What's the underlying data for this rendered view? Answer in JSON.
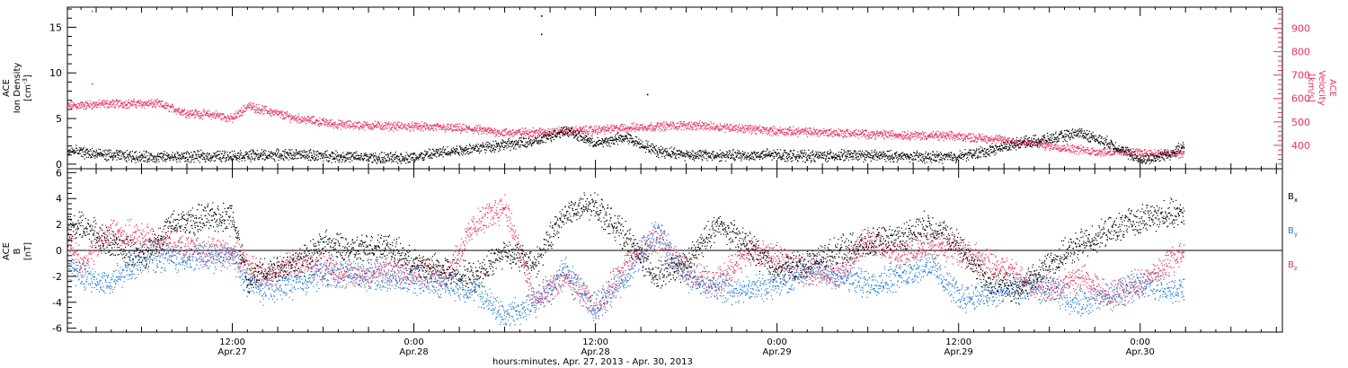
{
  "colors": {
    "black": "#000000",
    "pink": "#e8325c",
    "blue": "#1f7ad6"
  },
  "x_axis": {
    "ticks": [
      {
        "time": "12:00",
        "date": "Apr.27",
        "hours": 12
      },
      {
        "time": "0:00",
        "date": "Apr.28",
        "hours": 24
      },
      {
        "time": "12:00",
        "date": "Apr.28",
        "hours": 36
      },
      {
        "time": "0:00",
        "date": "Apr.29",
        "hours": 48
      },
      {
        "time": "12:00",
        "date": "Apr.29",
        "hours": 60
      },
      {
        "time": "0:00",
        "date": "Apr.30",
        "hours": 72
      }
    ],
    "label": "hours:minutes, Apr. 27, 2013 - Apr. 30, 2013",
    "range_hours": [
      1.1,
      81.4
    ]
  },
  "chart_data": [
    {
      "type": "scatter",
      "panel": "top",
      "ylabel": [
        "ACE",
        "Ion Density",
        "[cm^-3]"
      ],
      "ylim": [
        -0.5,
        17.2
      ],
      "yticks": [
        0,
        5,
        10,
        15
      ],
      "y2label": [
        "ACE",
        "Velocity",
        "[km/s]"
      ],
      "y2lim": [
        300,
        990
      ],
      "y2ticks": [
        400,
        500,
        600,
        700,
        800,
        900
      ],
      "series": [
        {
          "key": "density",
          "axis": "left",
          "color": "#000000",
          "x": [
            1.1,
            4,
            7,
            10,
            13,
            16,
            19,
            22,
            24,
            26,
            28,
            30,
            32,
            34,
            36,
            38,
            40,
            42,
            44,
            46,
            48,
            50,
            52,
            54,
            56,
            58,
            60,
            62,
            64,
            66,
            68,
            70,
            72,
            73,
            74,
            74.9
          ],
          "y": [
            1.5,
            1.0,
            0.8,
            0.9,
            1.0,
            1.1,
            0.9,
            0.7,
            0.8,
            1.4,
            1.8,
            2.2,
            2.5,
            3.8,
            2.3,
            3.0,
            1.5,
            1.1,
            1.0,
            1.0,
            1.1,
            0.9,
            1.0,
            1.0,
            0.9,
            0.8,
            0.9,
            1.5,
            2.4,
            2.8,
            3.5,
            2.3,
            0.5,
            0.8,
            1.2,
            2.0
          ]
        },
        {
          "key": "velocity",
          "axis": "right",
          "color": "#e8325c",
          "x": [
            1.1,
            4,
            7,
            9,
            11,
            12,
            13,
            16,
            19,
            22,
            25,
            28,
            30,
            33,
            36,
            39,
            42,
            45,
            48,
            51,
            54,
            57,
            60,
            63,
            66,
            69,
            72,
            74.9
          ],
          "y": [
            570,
            580,
            580,
            540,
            530,
            515,
            570,
            520,
            490,
            485,
            480,
            470,
            455,
            460,
            468,
            480,
            488,
            478,
            462,
            458,
            450,
            445,
            440,
            425,
            400,
            375,
            370,
            365
          ]
        }
      ],
      "outliers": [
        {
          "axis": "left",
          "x": 32.4,
          "y": 16.3
        },
        {
          "axis": "left",
          "x": 32.4,
          "y": 14.3
        },
        {
          "axis": "left",
          "x": 39.4,
          "y": 7.7
        },
        {
          "axis": "right",
          "x": 2.7,
          "y": 975
        },
        {
          "axis": "right",
          "x": 2.7,
          "y": 665
        }
      ]
    },
    {
      "type": "scatter",
      "panel": "bottom",
      "ylabel": [
        "ACE",
        "B",
        "[nT]"
      ],
      "ylim": [
        -6.3,
        6.3
      ],
      "yticks": [
        -6,
        -4,
        -2,
        0,
        2,
        4,
        6
      ],
      "zero_line": true,
      "legend": [
        {
          "name": "B",
          "sub": "x",
          "color": "#000000"
        },
        {
          "name": "B",
          "sub": "y",
          "color": "#1f7ad6"
        },
        {
          "name": "B",
          "sub": "z",
          "color": "#e8325c"
        }
      ],
      "series": [
        {
          "key": "Bx",
          "color": "#000000",
          "x": [
            1.1,
            2,
            4,
            6,
            8,
            10,
            12,
            13,
            14,
            16,
            18,
            20,
            22,
            24,
            26,
            28,
            30,
            32,
            34,
            36,
            38,
            40,
            42,
            44,
            46,
            48,
            50,
            52,
            54,
            56,
            58,
            60,
            62,
            64,
            66,
            68,
            70,
            72,
            74.9
          ],
          "y": [
            1.5,
            2.0,
            0.5,
            -0.5,
            2.0,
            2.5,
            2.7,
            -2.5,
            -1.5,
            -1.0,
            0.5,
            0.0,
            0.5,
            -1.0,
            -1.5,
            -2.0,
            0.0,
            -1.0,
            3.0,
            3.5,
            1.0,
            -2.0,
            -1.0,
            2.0,
            0.5,
            -1.5,
            -1.0,
            0.0,
            0.5,
            1.0,
            2.0,
            0.5,
            -2.5,
            -3.0,
            -1.0,
            0.5,
            1.5,
            2.5,
            3.0
          ]
        },
        {
          "key": "By",
          "color": "#1f7ad6",
          "x": [
            1.1,
            2,
            4,
            6,
            8,
            10,
            12,
            13,
            14,
            16,
            18,
            20,
            22,
            24,
            26,
            28,
            30,
            32,
            34,
            36,
            38,
            40,
            42,
            44,
            46,
            48,
            50,
            52,
            54,
            56,
            58,
            60,
            62,
            64,
            66,
            68,
            70,
            72,
            74.9
          ],
          "y": [
            -1.0,
            -2.0,
            -2.5,
            -0.5,
            -0.5,
            -0.5,
            -0.5,
            -2.5,
            -3.0,
            -2.5,
            -1.8,
            -1.8,
            -2.0,
            -2.3,
            -2.5,
            -3.0,
            -5.0,
            -4.0,
            -1.5,
            -4.5,
            -2.0,
            1.5,
            -2.0,
            -2.8,
            -3.0,
            -2.5,
            -1.5,
            -2.0,
            -2.5,
            -2.0,
            -1.0,
            -3.5,
            -3.5,
            -2.8,
            -3.0,
            -4.0,
            -3.5,
            -2.5,
            -3.0
          ]
        },
        {
          "key": "Bz",
          "color": "#e8325c",
          "x": [
            1.1,
            2,
            4,
            6,
            8,
            10,
            12,
            13,
            14,
            16,
            18,
            20,
            22,
            24,
            26,
            28,
            30,
            32,
            34,
            36,
            38,
            40,
            42,
            44,
            46,
            48,
            50,
            52,
            54,
            56,
            58,
            60,
            62,
            64,
            66,
            68,
            70,
            72,
            74.9
          ],
          "y": [
            0.5,
            -1.0,
            1.5,
            1.0,
            0.5,
            0.0,
            0.0,
            -1.0,
            -2.0,
            -1.0,
            -1.2,
            -2.0,
            -1.5,
            -1.5,
            -2.0,
            2.0,
            3.5,
            -4.0,
            -2.0,
            -4.5,
            -1.0,
            1.0,
            -1.5,
            -2.5,
            0.0,
            -0.5,
            -1.5,
            -2.0,
            1.0,
            -0.5,
            0.5,
            0.0,
            -1.0,
            -2.0,
            -3.0,
            -2.0,
            -3.5,
            -2.5,
            0.0
          ]
        }
      ]
    }
  ]
}
